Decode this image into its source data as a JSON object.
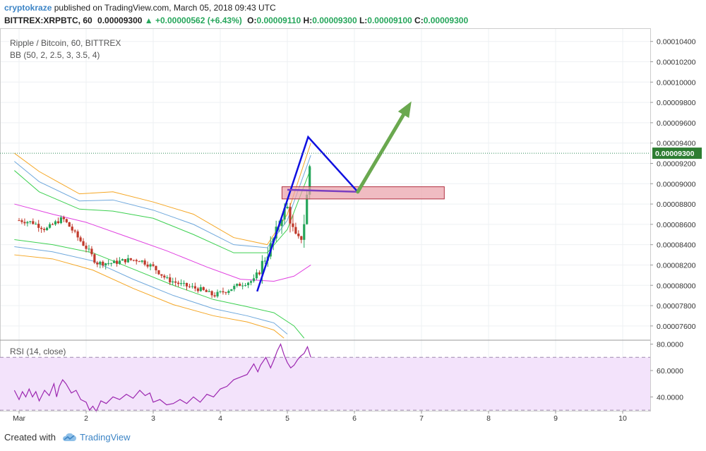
{
  "header": {
    "author": "cryptokraze",
    "published": "published on TradingView.com, March 05, 2018 09:43 UTC",
    "symbol": "BITTREX:XRPBTC, 60",
    "last": "0.00009300",
    "change": "▲ +0.00000562 (+6.43%)",
    "o_label": "O:",
    "o": "0.00009110",
    "h_label": "H:",
    "h": "0.00009300",
    "l_label": "L:",
    "l": "0.00009100",
    "c_label": "C:",
    "c": "0.00009300"
  },
  "legend": {
    "title": "Ripple / Bitcoin, 60, BITTREX",
    "indicator": "BB (50, 2, 2.5, 3, 3.5, 4)",
    "rsi": "RSI (14, close)"
  },
  "price_axis": {
    "ticks": [
      "0.00010400",
      "0.00010200",
      "0.00010000",
      "0.00009800",
      "0.00009600",
      "0.00009400",
      "0.00009200",
      "0.00009000",
      "0.00008800",
      "0.00008600",
      "0.00008400",
      "0.00008200",
      "0.00008000",
      "0.00007800",
      "0.00007600"
    ],
    "current_label": "0.00009300"
  },
  "rsi_axis": {
    "ticks": [
      "80.0000",
      "60.0000",
      "40.0000"
    ]
  },
  "time_axis": {
    "ticks": [
      "Mar",
      "2",
      "3",
      "4",
      "5",
      "6",
      "7",
      "8",
      "9",
      "10"
    ]
  },
  "footer": {
    "created_with": "Created with",
    "brand": "TradingView"
  },
  "colors": {
    "bull": "#26a65b",
    "bear": "#c0392b",
    "bb_orange": "#f5a623",
    "bb_blue": "#6fa8dc",
    "bb_green": "#3cd050",
    "bb_magenta": "#e040e0",
    "rsi": "#9c27b0",
    "zone_fill": "#eaa0a8",
    "zone_border": "#b03040",
    "triangle": "#1010e0",
    "pattern_base": "#7a3fc0",
    "arrow": "#6aa84f"
  },
  "chart_data": {
    "type": "candlestick",
    "title": "Ripple / Bitcoin, 60, BITTREX",
    "ylim": [
      7.46e-05,
      0.0001053
    ],
    "x_labels": [
      "Mar",
      "2",
      "3",
      "4",
      "5",
      "6",
      "7",
      "8",
      "9",
      "10"
    ],
    "close_path": [
      {
        "day": 1.0,
        "price": 8.64e-05
      },
      {
        "day": 1.2,
        "price": 8.62e-05
      },
      {
        "day": 1.4,
        "price": 8.55e-05
      },
      {
        "day": 1.55,
        "price": 8.62e-05
      },
      {
        "day": 1.65,
        "price": 8.66e-05
      },
      {
        "day": 1.75,
        "price": 8.58e-05
      },
      {
        "day": 1.9,
        "price": 8.45e-05
      },
      {
        "day": 2.05,
        "price": 8.33e-05
      },
      {
        "day": 2.15,
        "price": 8.22e-05
      },
      {
        "day": 2.4,
        "price": 8.22e-05
      },
      {
        "day": 2.6,
        "price": 8.25e-05
      },
      {
        "day": 2.8,
        "price": 8.25e-05
      },
      {
        "day": 3.0,
        "price": 8.18e-05
      },
      {
        "day": 3.2,
        "price": 8.06e-05
      },
      {
        "day": 3.45,
        "price": 8e-05
      },
      {
        "day": 3.7,
        "price": 7.96e-05
      },
      {
        "day": 3.9,
        "price": 7.9e-05
      },
      {
        "day": 4.1,
        "price": 7.95e-05
      },
      {
        "day": 4.3,
        "price": 8.01e-05
      },
      {
        "day": 4.5,
        "price": 8.05e-05
      },
      {
        "day": 4.6,
        "price": 8.18e-05
      },
      {
        "day": 4.75,
        "price": 8.38e-05
      },
      {
        "day": 4.85,
        "price": 8.55e-05
      },
      {
        "day": 4.92,
        "price": 8.7e-05
      },
      {
        "day": 5.0,
        "price": 8.76e-05
      },
      {
        "day": 5.1,
        "price": 8.5e-05
      },
      {
        "day": 5.15,
        "price": 8.43e-05
      },
      {
        "day": 5.2,
        "price": 8.45e-05
      },
      {
        "day": 5.25,
        "price": 8.62e-05
      },
      {
        "day": 5.3,
        "price": 8.93e-05
      },
      {
        "day": 5.35,
        "price": 9.3e-05
      }
    ],
    "bollinger": {
      "upper_4": [
        {
          "day": 0.93,
          "price": 9.3e-05
        },
        {
          "day": 1.3,
          "price": 9.12e-05
        },
        {
          "day": 1.9,
          "price": 8.9e-05
        },
        {
          "day": 2.4,
          "price": 8.92e-05
        },
        {
          "day": 3.0,
          "price": 8.82e-05
        },
        {
          "day": 3.6,
          "price": 8.7e-05
        },
        {
          "day": 4.2,
          "price": 8.47e-05
        },
        {
          "day": 4.7,
          "price": 8.4e-05
        },
        {
          "day": 5.0,
          "price": 8.7e-05
        },
        {
          "day": 5.35,
          "price": 9.4e-05
        }
      ],
      "upper_3": [
        {
          "day": 0.93,
          "price": 9.22e-05
        },
        {
          "day": 1.3,
          "price": 9.02e-05
        },
        {
          "day": 1.9,
          "price": 8.83e-05
        },
        {
          "day": 2.4,
          "price": 8.84e-05
        },
        {
          "day": 3.0,
          "price": 8.74e-05
        },
        {
          "day": 3.6,
          "price": 8.6e-05
        },
        {
          "day": 4.2,
          "price": 8.4e-05
        },
        {
          "day": 4.7,
          "price": 8.37e-05
        },
        {
          "day": 5.0,
          "price": 8.64e-05
        },
        {
          "day": 5.35,
          "price": 9.28e-05
        }
      ],
      "upper_2": [
        {
          "day": 0.93,
          "price": 9.13e-05
        },
        {
          "day": 1.3,
          "price": 8.92e-05
        },
        {
          "day": 1.9,
          "price": 8.75e-05
        },
        {
          "day": 2.4,
          "price": 8.73e-05
        },
        {
          "day": 3.0,
          "price": 8.66e-05
        },
        {
          "day": 3.6,
          "price": 8.5e-05
        },
        {
          "day": 4.2,
          "price": 8.32e-05
        },
        {
          "day": 4.7,
          "price": 8.32e-05
        },
        {
          "day": 5.0,
          "price": 8.55e-05
        },
        {
          "day": 5.35,
          "price": 9.15e-05
        }
      ],
      "basis": [
        {
          "day": 0.93,
          "price": 8.8e-05
        },
        {
          "day": 1.5,
          "price": 8.7e-05
        },
        {
          "day": 2.0,
          "price": 8.62e-05
        },
        {
          "day": 2.6,
          "price": 8.48e-05
        },
        {
          "day": 3.2,
          "price": 8.34e-05
        },
        {
          "day": 3.8,
          "price": 8.18e-05
        },
        {
          "day": 4.3,
          "price": 8.06e-05
        },
        {
          "day": 4.8,
          "price": 8.04e-05
        },
        {
          "day": 5.1,
          "price": 8.09e-05
        },
        {
          "day": 5.35,
          "price": 8.2e-05
        }
      ],
      "lower_2": [
        {
          "day": 0.93,
          "price": 8.45e-05
        },
        {
          "day": 1.5,
          "price": 8.4e-05
        },
        {
          "day": 2.1,
          "price": 8.32e-05
        },
        {
          "day": 2.7,
          "price": 8.16e-05
        },
        {
          "day": 3.3,
          "price": 8e-05
        },
        {
          "day": 3.9,
          "price": 7.86e-05
        },
        {
          "day": 4.4,
          "price": 7.79e-05
        },
        {
          "day": 4.8,
          "price": 7.73e-05
        },
        {
          "day": 5.1,
          "price": 7.6e-05
        },
        {
          "day": 5.25,
          "price": 7.48e-05
        }
      ],
      "lower_3": [
        {
          "day": 0.93,
          "price": 8.38e-05
        },
        {
          "day": 1.5,
          "price": 8.33e-05
        },
        {
          "day": 2.1,
          "price": 8.24e-05
        },
        {
          "day": 2.7,
          "price": 8.06e-05
        },
        {
          "day": 3.3,
          "price": 7.9e-05
        },
        {
          "day": 3.9,
          "price": 7.77e-05
        },
        {
          "day": 4.4,
          "price": 7.7e-05
        },
        {
          "day": 4.8,
          "price": 7.63e-05
        },
        {
          "day": 5.0,
          "price": 7.52e-05
        }
      ],
      "lower_4": [
        {
          "day": 0.93,
          "price": 8.3e-05
        },
        {
          "day": 1.5,
          "price": 8.26e-05
        },
        {
          "day": 2.1,
          "price": 8.15e-05
        },
        {
          "day": 2.7,
          "price": 7.97e-05
        },
        {
          "day": 3.3,
          "price": 7.81e-05
        },
        {
          "day": 3.9,
          "price": 7.7e-05
        },
        {
          "day": 4.4,
          "price": 7.64e-05
        },
        {
          "day": 4.8,
          "price": 7.56e-05
        },
        {
          "day": 4.95,
          "price": 7.48e-05
        }
      ]
    },
    "rsi": {
      "ylim": [
        29.5,
        83
      ],
      "levels": [
        70,
        30
      ],
      "values": [
        {
          "day": 0.93,
          "v": 45
        },
        {
          "day": 1.0,
          "v": 38
        },
        {
          "day": 1.05,
          "v": 44
        },
        {
          "day": 1.1,
          "v": 40
        },
        {
          "day": 1.15,
          "v": 46
        },
        {
          "day": 1.2,
          "v": 40
        },
        {
          "day": 1.25,
          "v": 44
        },
        {
          "day": 1.3,
          "v": 37
        },
        {
          "day": 1.38,
          "v": 45
        },
        {
          "day": 1.45,
          "v": 41
        },
        {
          "day": 1.52,
          "v": 50
        },
        {
          "day": 1.56,
          "v": 40
        },
        {
          "day": 1.6,
          "v": 48
        },
        {
          "day": 1.65,
          "v": 53
        },
        {
          "day": 1.7,
          "v": 50
        },
        {
          "day": 1.78,
          "v": 43
        },
        {
          "day": 1.85,
          "v": 45
        },
        {
          "day": 1.92,
          "v": 38
        },
        {
          "day": 2.0,
          "v": 36
        },
        {
          "day": 2.05,
          "v": 30
        },
        {
          "day": 2.1,
          "v": 33
        },
        {
          "day": 2.15,
          "v": 29
        },
        {
          "day": 2.22,
          "v": 37
        },
        {
          "day": 2.3,
          "v": 35
        },
        {
          "day": 2.4,
          "v": 40
        },
        {
          "day": 2.5,
          "v": 38
        },
        {
          "day": 2.6,
          "v": 42
        },
        {
          "day": 2.7,
          "v": 39
        },
        {
          "day": 2.8,
          "v": 45
        },
        {
          "day": 2.88,
          "v": 41
        },
        {
          "day": 2.95,
          "v": 43
        },
        {
          "day": 3.0,
          "v": 36
        },
        {
          "day": 3.1,
          "v": 38
        },
        {
          "day": 3.2,
          "v": 34
        },
        {
          "day": 3.3,
          "v": 35
        },
        {
          "day": 3.4,
          "v": 38
        },
        {
          "day": 3.5,
          "v": 35
        },
        {
          "day": 3.6,
          "v": 40
        },
        {
          "day": 3.7,
          "v": 36
        },
        {
          "day": 3.8,
          "v": 42
        },
        {
          "day": 3.9,
          "v": 40
        },
        {
          "day": 4.0,
          "v": 46
        },
        {
          "day": 4.1,
          "v": 48
        },
        {
          "day": 4.2,
          "v": 53
        },
        {
          "day": 4.3,
          "v": 55
        },
        {
          "day": 4.4,
          "v": 57
        },
        {
          "day": 4.5,
          "v": 65
        },
        {
          "day": 4.56,
          "v": 59
        },
        {
          "day": 4.6,
          "v": 64
        },
        {
          "day": 4.68,
          "v": 70
        },
        {
          "day": 4.75,
          "v": 62
        },
        {
          "day": 4.8,
          "v": 68
        },
        {
          "day": 4.85,
          "v": 75
        },
        {
          "day": 4.9,
          "v": 80
        },
        {
          "day": 4.95,
          "v": 72
        },
        {
          "day": 5.0,
          "v": 66
        },
        {
          "day": 5.05,
          "v": 62
        },
        {
          "day": 5.1,
          "v": 64
        },
        {
          "day": 5.15,
          "v": 68
        },
        {
          "day": 5.2,
          "v": 71
        },
        {
          "day": 5.25,
          "v": 73
        },
        {
          "day": 5.3,
          "v": 78
        },
        {
          "day": 5.35,
          "v": 70
        }
      ]
    },
    "annotations": {
      "zone": {
        "day_start": 4.92,
        "day_end": 7.34,
        "price_top": 8.97e-05,
        "price_bottom": 8.85e-05
      },
      "triangle": [
        {
          "day": 4.55,
          "price": 7.94e-05
        },
        {
          "day": 5.31,
          "price": 9.46e-05
        },
        {
          "day": 6.05,
          "price": 8.92e-05
        },
        {
          "day": 5.0,
          "price": 8.94e-05
        }
      ],
      "pattern_base": [
        {
          "day": 5.0,
          "price": 8.94e-05
        },
        {
          "day": 6.05,
          "price": 8.92e-05
        }
      ],
      "arrow": [
        {
          "day": 6.05,
          "price": 8.92e-05
        },
        {
          "day": 6.85,
          "price": 9.81e-05
        }
      ]
    }
  }
}
